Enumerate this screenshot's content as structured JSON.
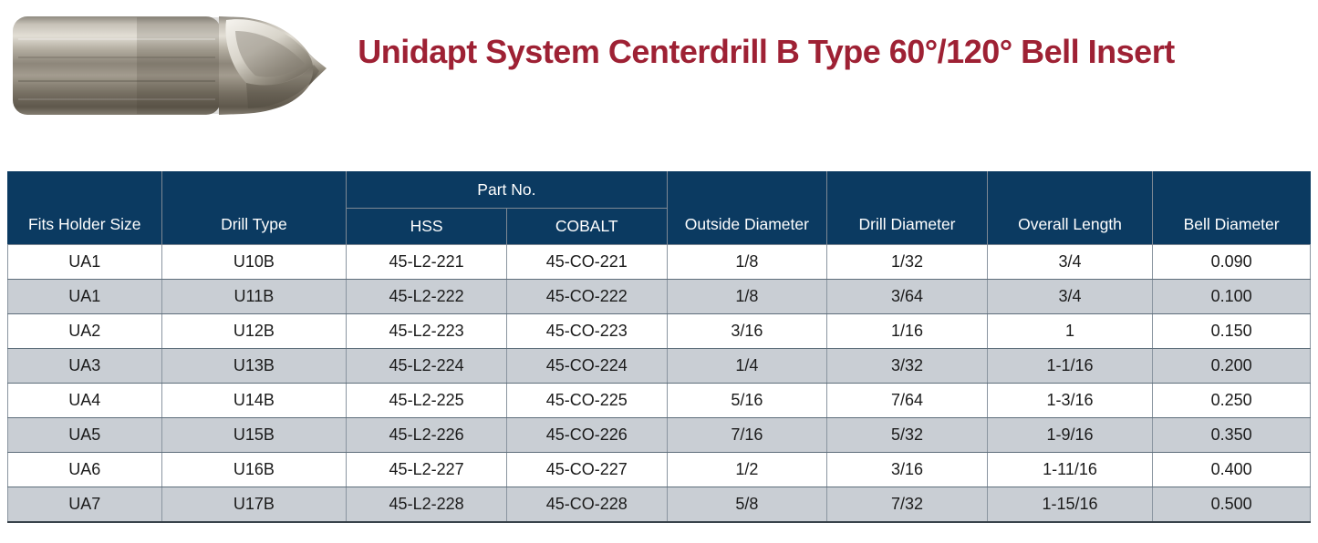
{
  "page": {
    "title": "Unidapt System Centerdrill B Type 60°/120° Bell Insert",
    "title_color": "#9E2134",
    "background": "#FFFFFF"
  },
  "product_image": {
    "name": "centerdrill-bell-insert-photo",
    "description": "Metal centerdrill bell insert tool"
  },
  "table": {
    "colors": {
      "header_bg": "#0B3A61",
      "header_text": "#FFFFFF",
      "stripe_bg": "#C9CED4",
      "body_text": "#1B1B1B"
    },
    "group_header": "Part No.",
    "columns": [
      "Fits Holder Size",
      "Drill Type",
      "HSS",
      "COBALT",
      "Outside Diameter",
      "Drill Diameter",
      "Overall Length",
      "Bell Diameter"
    ],
    "rows": [
      [
        "UA1",
        "U10B",
        "45-L2-221",
        "45-CO-221",
        "1/8",
        "1/32",
        "3/4",
        "0.090"
      ],
      [
        "UA1",
        "U11B",
        "45-L2-222",
        "45-CO-222",
        "1/8",
        "3/64",
        "3/4",
        "0.100"
      ],
      [
        "UA2",
        "U12B",
        "45-L2-223",
        "45-CO-223",
        "3/16",
        "1/16",
        "1",
        "0.150"
      ],
      [
        "UA3",
        "U13B",
        "45-L2-224",
        "45-CO-224",
        "1/4",
        "3/32",
        "1-1/16",
        "0.200"
      ],
      [
        "UA4",
        "U14B",
        "45-L2-225",
        "45-CO-225",
        "5/16",
        "7/64",
        "1-3/16",
        "0.250"
      ],
      [
        "UA5",
        "U15B",
        "45-L2-226",
        "45-CO-226",
        "7/16",
        "5/32",
        "1-9/16",
        "0.350"
      ],
      [
        "UA6",
        "U16B",
        "45-L2-227",
        "45-CO-227",
        "1/2",
        "3/16",
        "1-11/16",
        "0.400"
      ],
      [
        "UA7",
        "U17B",
        "45-L2-228",
        "45-CO-228",
        "5/8",
        "7/32",
        "1-15/16",
        "0.500"
      ]
    ]
  }
}
